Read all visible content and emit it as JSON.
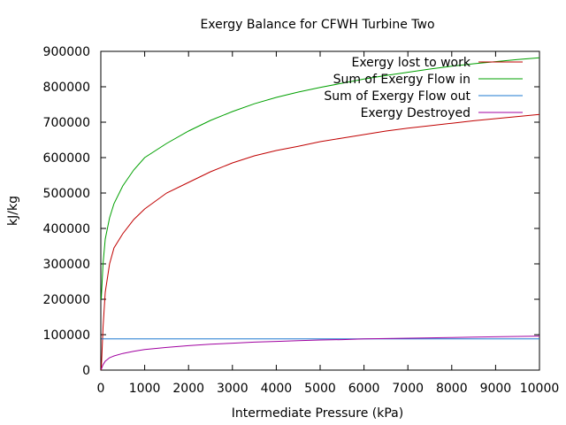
{
  "chart_data": {
    "type": "line",
    "title": "Exergy Balance for CFWH Turbine Two",
    "xlabel": "Intermediate Pressure (kPa)",
    "ylabel": "kJ/kg",
    "xlim": [
      0,
      10000
    ],
    "ylim": [
      0,
      900000
    ],
    "x_ticks": [
      0,
      1000,
      2000,
      3000,
      4000,
      5000,
      6000,
      7000,
      8000,
      9000,
      10000
    ],
    "y_ticks": [
      0,
      100000,
      200000,
      300000,
      400000,
      500000,
      600000,
      700000,
      800000,
      900000
    ],
    "grid": false,
    "legend_position": "top-right",
    "x": [
      10,
      50,
      100,
      200,
      300,
      500,
      750,
      1000,
      1500,
      2000,
      2500,
      3000,
      3500,
      4000,
      4500,
      5000,
      5500,
      6000,
      6500,
      7000,
      7500,
      8000,
      8500,
      9000,
      9500,
      10000
    ],
    "series": [
      {
        "name": "Exergy lost to work",
        "color": "#c00000",
        "values": [
          0,
          120000,
          220000,
          300000,
          345000,
          385000,
          425000,
          455000,
          500000,
          530000,
          560000,
          585000,
          605000,
          620000,
          632000,
          645000,
          655000,
          665000,
          675000,
          683000,
          690000,
          697000,
          704000,
          710000,
          716000,
          722000
        ]
      },
      {
        "name": "Sum of Exergy Flow in",
        "color": "#00a000",
        "values": [
          200000,
          300000,
          370000,
          430000,
          470000,
          520000,
          565000,
          600000,
          640000,
          675000,
          705000,
          730000,
          752000,
          770000,
          785000,
          798000,
          810000,
          822000,
          832000,
          841000,
          850000,
          858000,
          865000,
          871000,
          877000,
          882000
        ]
      },
      {
        "name": "Sum of Exergy Flow out",
        "color": "#1e78d0",
        "values": [
          88000,
          88000,
          88000,
          88000,
          88000,
          88000,
          88000,
          88000,
          88000,
          88000,
          88000,
          88000,
          88000,
          88000,
          88000,
          88000,
          88000,
          88000,
          88000,
          88000,
          88000,
          88000,
          88000,
          88000,
          88000,
          88000
        ]
      },
      {
        "name": "Exergy Destroyed",
        "color": "#a000a0",
        "values": [
          2000,
          15000,
          25000,
          35000,
          40000,
          47000,
          53000,
          58000,
          64000,
          69000,
          73000,
          76000,
          79000,
          81000,
          83000,
          85000,
          86000,
          88000,
          89000,
          90000,
          91000,
          92000,
          93000,
          94000,
          95000,
          96000
        ]
      }
    ]
  }
}
